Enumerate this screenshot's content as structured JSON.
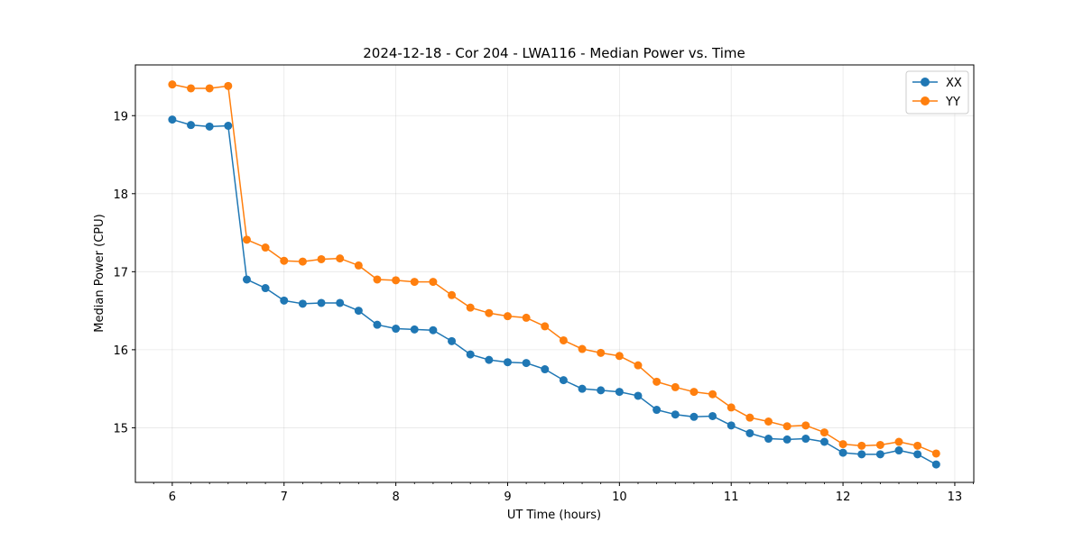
{
  "chart_data": {
    "type": "line",
    "title": "2024-12-18 - Cor 204 - LWA116 - Median Power vs. Time",
    "xlabel": "UT Time (hours)",
    "ylabel": "Median Power (CPU)",
    "xlim": [
      5.67,
      13.17
    ],
    "ylim": [
      14.3,
      19.65
    ],
    "xticks": [
      6,
      7,
      8,
      9,
      10,
      11,
      12,
      13
    ],
    "xtick_labels": [
      "6",
      "7",
      "8",
      "9",
      "10",
      "11",
      "12",
      "13"
    ],
    "yticks": [
      15,
      16,
      17,
      18,
      19
    ],
    "ytick_labels": [
      "15",
      "16",
      "17",
      "18",
      "19"
    ],
    "grid": true,
    "legend_position": "top-right",
    "x": [
      6.0,
      6.1667,
      6.3333,
      6.5,
      6.6667,
      6.8333,
      7.0,
      7.1667,
      7.3333,
      7.5,
      7.6667,
      7.8333,
      8.0,
      8.1667,
      8.3333,
      8.5,
      8.6667,
      8.8333,
      9.0,
      9.1667,
      9.3333,
      9.5,
      9.6667,
      9.8333,
      10.0,
      10.1667,
      10.3333,
      10.5,
      10.6667,
      10.8333,
      11.0,
      11.1667,
      11.3333,
      11.5,
      11.6667,
      11.8333,
      12.0,
      12.1667,
      12.3333,
      12.5,
      12.6667,
      12.8333
    ],
    "series": [
      {
        "name": "XX",
        "color": "#1f77b4",
        "values": [
          18.95,
          18.88,
          18.86,
          18.87,
          16.9,
          16.79,
          16.63,
          16.59,
          16.6,
          16.6,
          16.5,
          16.32,
          16.27,
          16.26,
          16.25,
          16.11,
          15.94,
          15.87,
          15.84,
          15.83,
          15.75,
          15.61,
          15.5,
          15.48,
          15.46,
          15.41,
          15.23,
          15.17,
          15.14,
          15.15,
          15.03,
          14.93,
          14.86,
          14.85,
          14.86,
          14.82,
          14.68,
          14.66,
          14.66,
          14.71,
          14.66,
          14.53
        ]
      },
      {
        "name": "YY",
        "color": "#ff7f0e",
        "values": [
          19.4,
          19.35,
          19.35,
          19.38,
          17.41,
          17.31,
          17.14,
          17.13,
          17.16,
          17.17,
          17.08,
          16.9,
          16.89,
          16.87,
          16.87,
          16.7,
          16.54,
          16.47,
          16.43,
          16.41,
          16.3,
          16.12,
          16.01,
          15.96,
          15.92,
          15.8,
          15.59,
          15.52,
          15.46,
          15.43,
          15.26,
          15.13,
          15.08,
          15.02,
          15.03,
          14.94,
          14.79,
          14.77,
          14.78,
          14.82,
          14.77,
          14.67
        ]
      }
    ]
  }
}
